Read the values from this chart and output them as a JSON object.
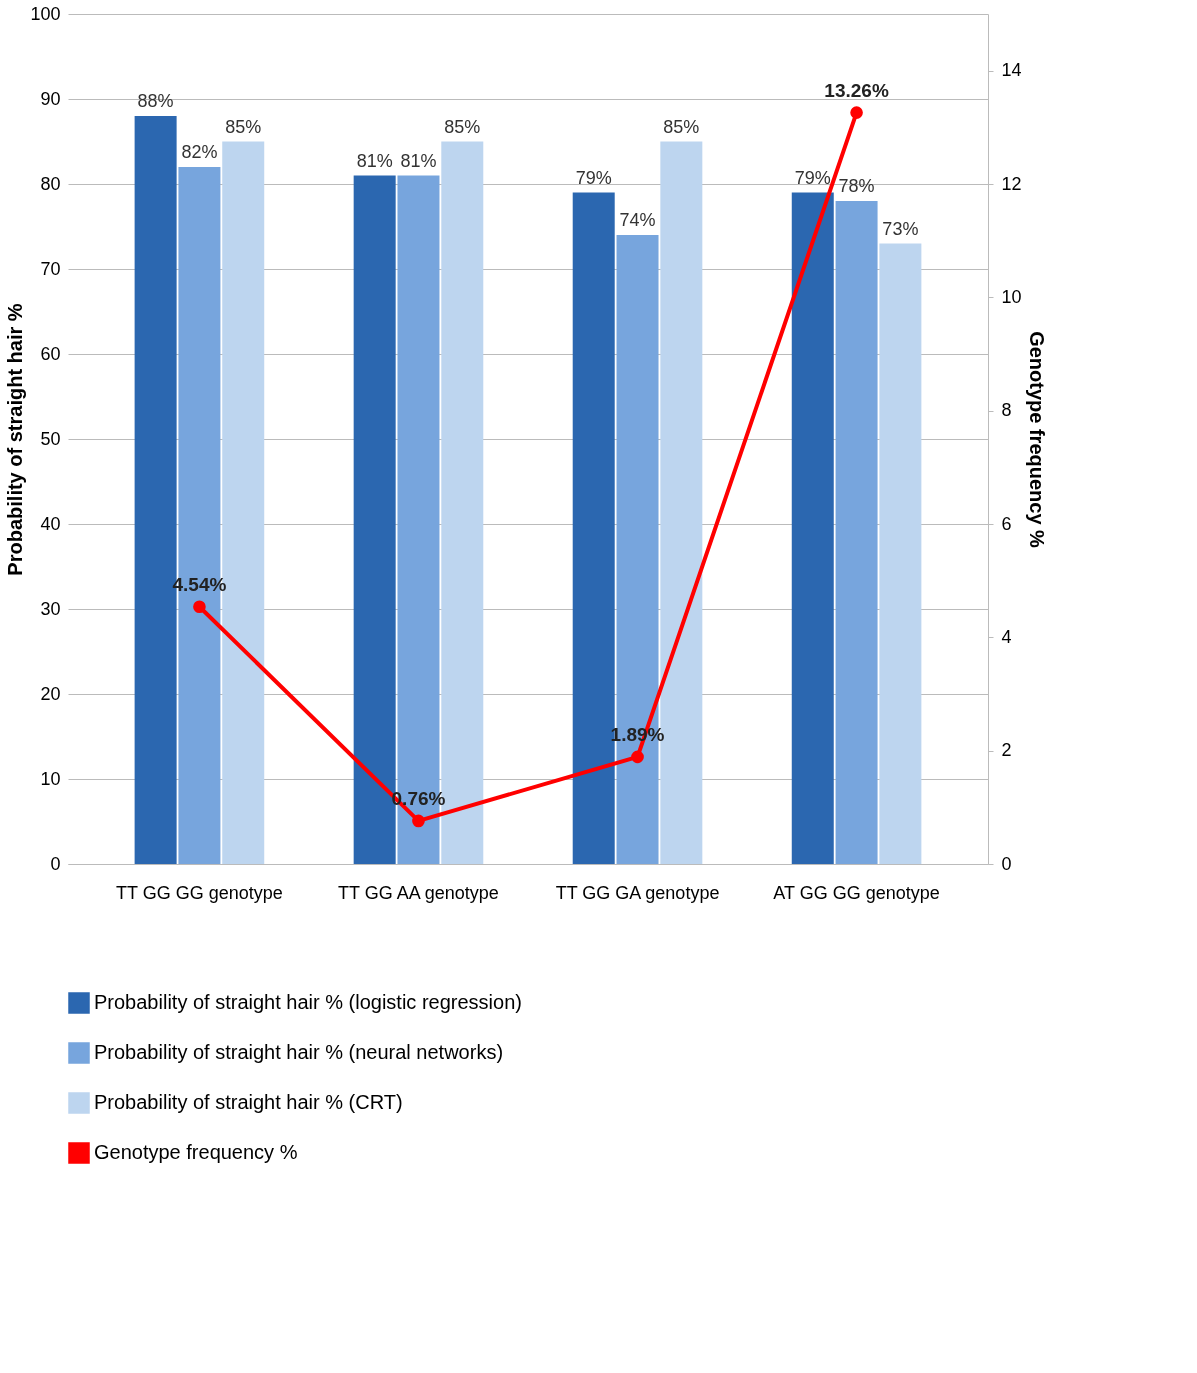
{
  "chart_data": {
    "type": "bar",
    "ylabel": "Probability of straight hair %",
    "y2label": "Genotype frequency %",
    "categories": [
      "TT GG GG genotype",
      "TT GG AA genotype",
      "TT GG GA genotype",
      "AT GG GG genotype"
    ],
    "series": [
      {
        "name": "Probability of straight hair % (logistic regression)",
        "color": "#2b67b0",
        "values": [
          88,
          81,
          79,
          79
        ],
        "value_labels": [
          "88%",
          "81%",
          "79%",
          "79%"
        ]
      },
      {
        "name": "Probability of straight hair % (neural networks)",
        "color": "#77a5dd",
        "values": [
          82,
          81,
          74,
          78
        ],
        "value_labels": [
          "82%",
          "81%",
          "74%",
          "78%"
        ]
      },
      {
        "name": "Probability of straight hair % (CRT)",
        "color": "#bdd5ef",
        "values": [
          85,
          85,
          85,
          73
        ],
        "value_labels": [
          "85%",
          "85%",
          "85%",
          "73%"
        ]
      },
      {
        "name": "Genotype frequency %",
        "type": "line",
        "axis": "y2",
        "color": "#ff0000",
        "marker": "circle",
        "values": [
          4.54,
          0.76,
          1.89,
          13.26
        ],
        "value_labels": [
          "4.54%",
          "0.76%",
          "1.89%",
          "13.26%"
        ]
      }
    ],
    "ylim": [
      0,
      100
    ],
    "yticks": [
      0,
      10,
      20,
      30,
      40,
      50,
      60,
      70,
      80,
      90,
      100
    ],
    "y2lim": [
      0,
      15
    ],
    "y2ticks": [
      0,
      2,
      4,
      6,
      8,
      10,
      12,
      14
    ],
    "grid": "y",
    "legend": "bottom"
  }
}
